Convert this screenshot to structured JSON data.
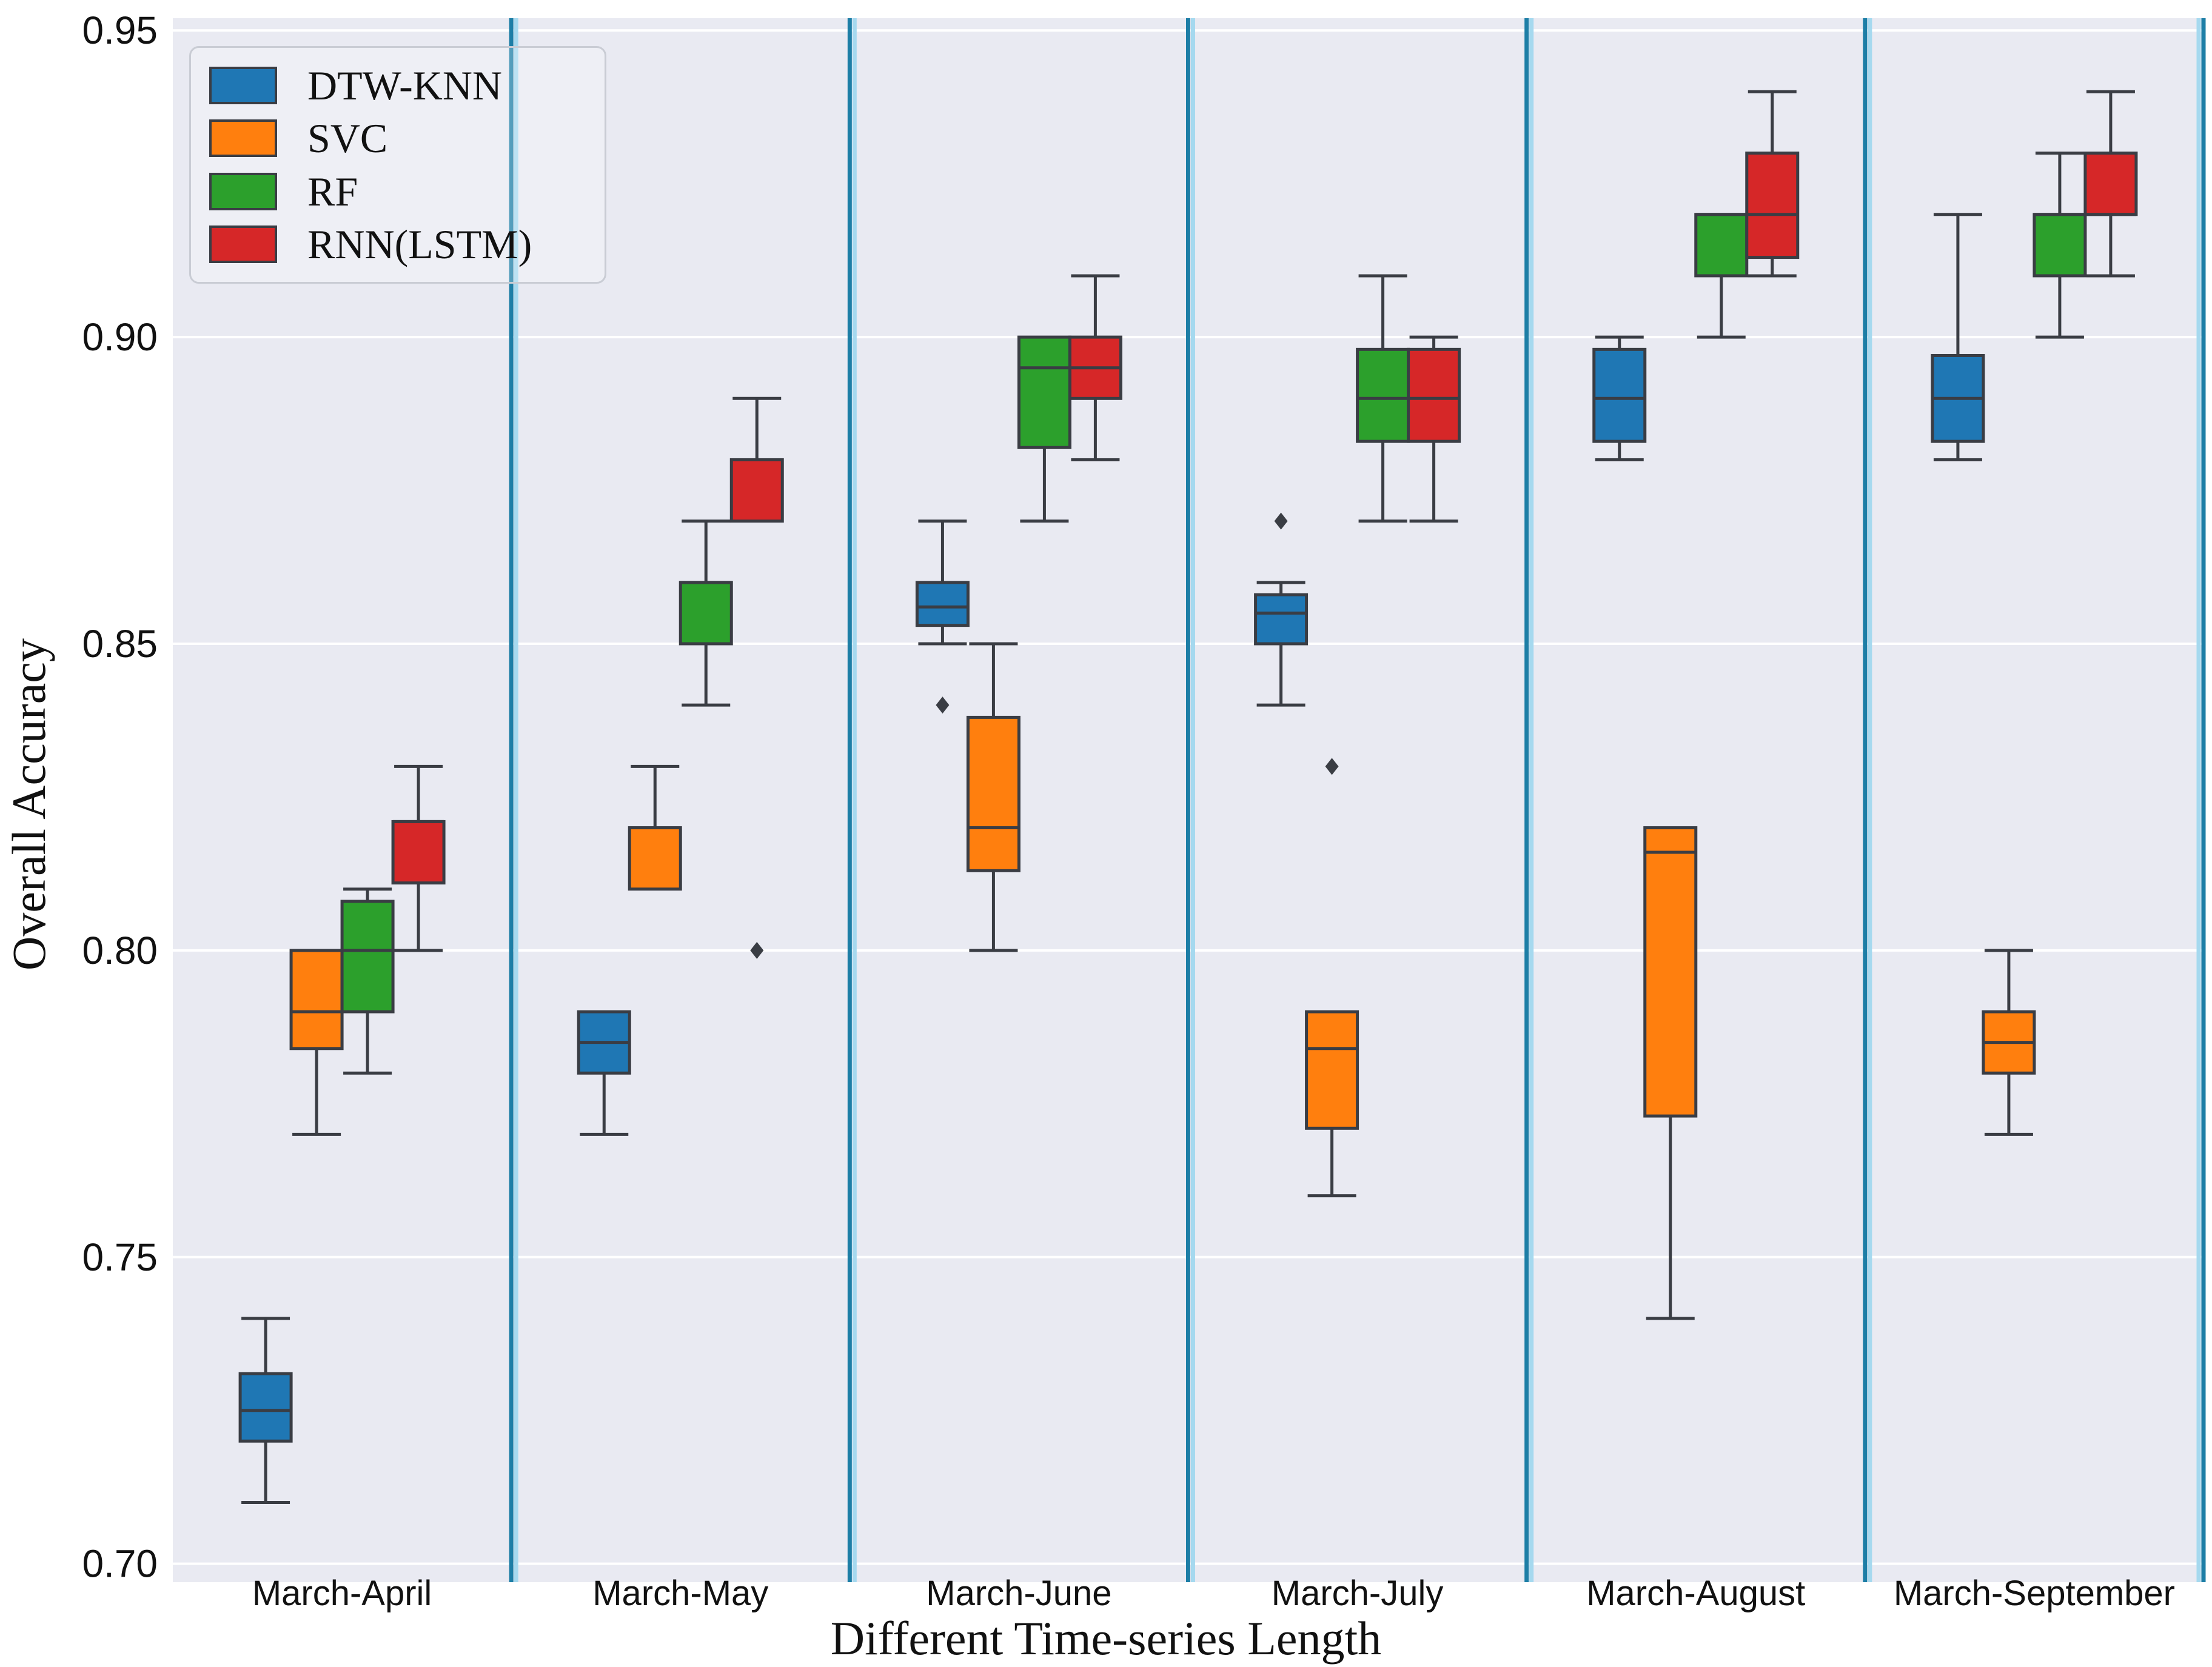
{
  "chart_data": {
    "type": "box",
    "title": "",
    "xlabel": "Different Time-series Length",
    "ylabel": "Overall Accuracy",
    "categories": [
      "March-April",
      "March-May",
      "March-June",
      "March-July",
      "March-August",
      "March-September"
    ],
    "yticks": [
      0.95,
      0.9,
      0.85,
      0.8,
      0.75,
      0.7
    ],
    "ytick_labels": [
      "0.95",
      "0.90",
      "0.85",
      "0.80",
      "0.75",
      "0.70"
    ],
    "ylim": [
      0.697,
      0.952
    ],
    "grid": "horizontal white gridlines at y ticks",
    "legend_position": "upper-left",
    "group_separators": "vertical teal lines between category groups and at right plot edge",
    "series": [
      {
        "name": "DTW-KNN",
        "color": "#1f77b4",
        "boxes": [
          {
            "lo": 0.71,
            "q1": 0.72,
            "med": 0.725,
            "q3": 0.731,
            "hi": 0.74,
            "outliers": []
          },
          {
            "lo": 0.77,
            "q1": 0.78,
            "med": 0.785,
            "q3": 0.79,
            "hi": 0.79,
            "outliers": []
          },
          {
            "lo": 0.85,
            "q1": 0.853,
            "med": 0.856,
            "q3": 0.86,
            "hi": 0.87,
            "outliers": [
              0.84
            ]
          },
          {
            "lo": 0.84,
            "q1": 0.85,
            "med": 0.855,
            "q3": 0.858,
            "hi": 0.86,
            "outliers": [
              0.87
            ]
          },
          {
            "lo": 0.88,
            "q1": 0.883,
            "med": 0.89,
            "q3": 0.898,
            "hi": 0.9,
            "outliers": []
          },
          {
            "lo": 0.88,
            "q1": 0.883,
            "med": 0.89,
            "q3": 0.897,
            "hi": 0.92,
            "outliers": []
          }
        ]
      },
      {
        "name": "SVC",
        "color": "#ff7f0e",
        "boxes": [
          {
            "lo": 0.77,
            "q1": 0.784,
            "med": 0.79,
            "q3": 0.8,
            "hi": 0.8,
            "outliers": []
          },
          {
            "lo": 0.81,
            "q1": 0.81,
            "med": 0.82,
            "q3": 0.82,
            "hi": 0.83,
            "outliers": []
          },
          {
            "lo": 0.8,
            "q1": 0.813,
            "med": 0.82,
            "q3": 0.838,
            "hi": 0.85,
            "outliers": []
          },
          {
            "lo": 0.76,
            "q1": 0.771,
            "med": 0.784,
            "q3": 0.79,
            "hi": 0.79,
            "outliers": [
              0.83
            ]
          },
          {
            "lo": 0.74,
            "q1": 0.773,
            "med": 0.816,
            "q3": 0.82,
            "hi": 0.82,
            "outliers": []
          },
          {
            "lo": 0.77,
            "q1": 0.78,
            "med": 0.785,
            "q3": 0.79,
            "hi": 0.8,
            "outliers": []
          }
        ]
      },
      {
        "name": "RF",
        "color": "#2ca02c",
        "boxes": [
          {
            "lo": 0.78,
            "q1": 0.79,
            "med": 0.8,
            "q3": 0.808,
            "hi": 0.81,
            "outliers": []
          },
          {
            "lo": 0.84,
            "q1": 0.85,
            "med": 0.86,
            "q3": 0.86,
            "hi": 0.87,
            "outliers": []
          },
          {
            "lo": 0.87,
            "q1": 0.882,
            "med": 0.895,
            "q3": 0.9,
            "hi": 0.9,
            "outliers": []
          },
          {
            "lo": 0.87,
            "q1": 0.883,
            "med": 0.89,
            "q3": 0.898,
            "hi": 0.91,
            "outliers": []
          },
          {
            "lo": 0.9,
            "q1": 0.91,
            "med": 0.92,
            "q3": 0.92,
            "hi": 0.92,
            "outliers": []
          },
          {
            "lo": 0.9,
            "q1": 0.91,
            "med": 0.92,
            "q3": 0.92,
            "hi": 0.93,
            "outliers": []
          }
        ]
      },
      {
        "name": "RNN(LSTM)",
        "color": "#d62728",
        "boxes": [
          {
            "lo": 0.8,
            "q1": 0.811,
            "med": 0.821,
            "q3": 0.821,
            "hi": 0.83,
            "outliers": []
          },
          {
            "lo": 0.87,
            "q1": 0.87,
            "med": 0.88,
            "q3": 0.88,
            "hi": 0.89,
            "outliers": [
              0.8
            ]
          },
          {
            "lo": 0.88,
            "q1": 0.89,
            "med": 0.895,
            "q3": 0.9,
            "hi": 0.91,
            "outliers": []
          },
          {
            "lo": 0.87,
            "q1": 0.883,
            "med": 0.89,
            "q3": 0.898,
            "hi": 0.9,
            "outliers": []
          },
          {
            "lo": 0.91,
            "q1": 0.913,
            "med": 0.92,
            "q3": 0.93,
            "hi": 0.94,
            "outliers": []
          },
          {
            "lo": 0.91,
            "q1": 0.92,
            "med": 0.92,
            "q3": 0.93,
            "hi": 0.94,
            "outliers": []
          }
        ]
      }
    ],
    "colors": {
      "plot_background": "#e9eaf2",
      "page_background": "#ffffff",
      "gridline": "#ffffff",
      "separator_dark": "#1d7ea6",
      "separator_light": "#a6d9ef",
      "box_edge": "#3a3d44",
      "whisker": "#3a3d44",
      "outlier": "#3a3d44",
      "text": "#111111",
      "legend_border": "#c9ccd4"
    }
  }
}
